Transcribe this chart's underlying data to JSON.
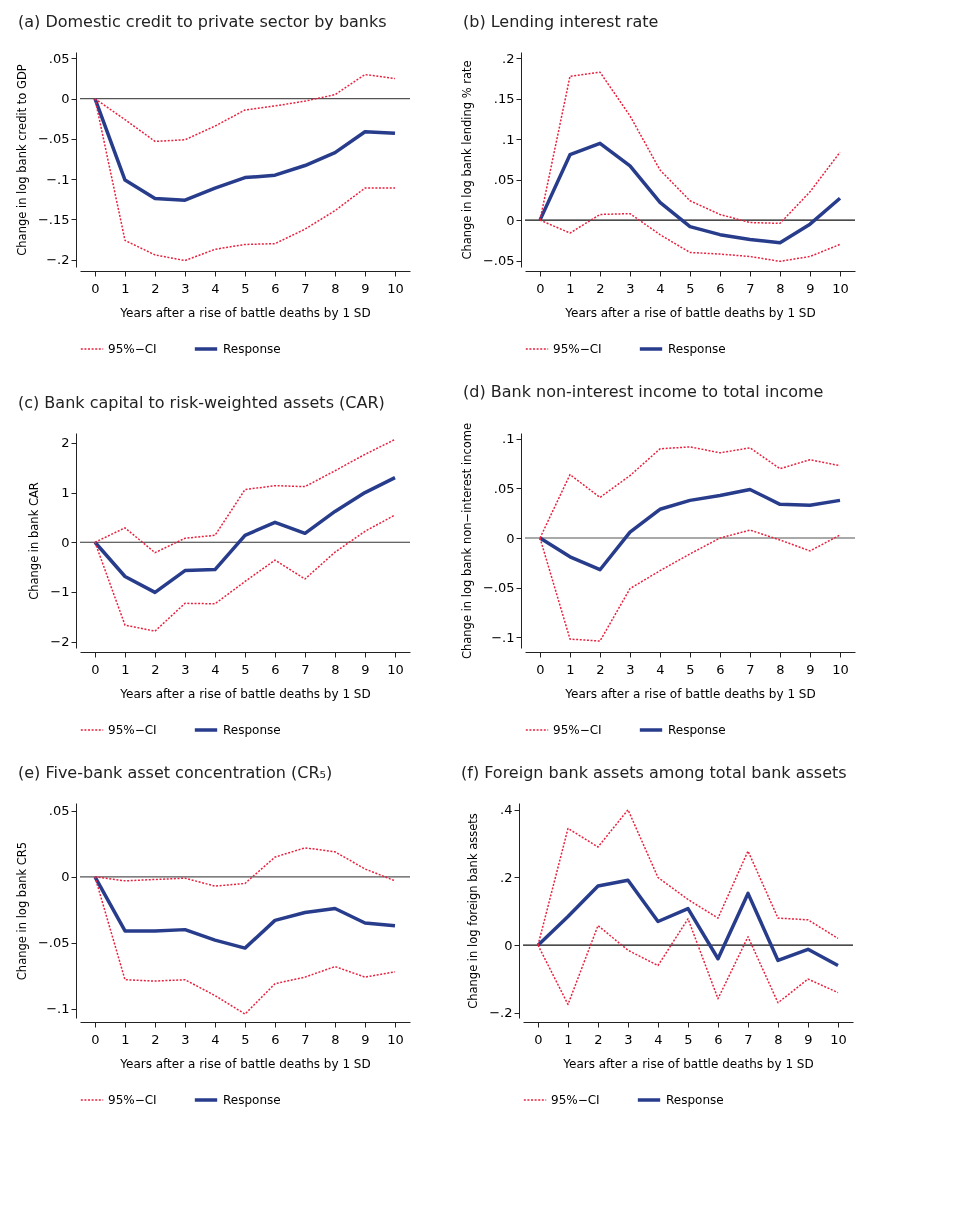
{
  "chart_data": [
    {
      "type": "line",
      "title": "(a) Domestic credit to private sector by banks",
      "xlabel": "Years after a rise of battle deaths by 1 SD",
      "ylabel": "Change in log bank credit to GDP",
      "x": [
        0,
        1,
        2,
        3,
        4,
        5,
        6,
        7,
        8,
        9,
        10
      ],
      "xlim": [
        -0.5,
        10.5
      ],
      "xticks": [
        0,
        1,
        2,
        3,
        4,
        5,
        6,
        7,
        8,
        9,
        10
      ],
      "ylim": [
        -0.209,
        0.058
      ],
      "yticks": [
        {
          "value": -0.2,
          "label": "−.2"
        },
        {
          "value": -0.15,
          "label": "−.15"
        },
        {
          "value": -0.1,
          "label": "−.1"
        },
        {
          "value": -0.05,
          "label": "−.05"
        },
        0,
        {
          "value": 0.05,
          "label": ".05"
        }
      ],
      "legend": "bottom",
      "ref_lines": [
        {
          "axis": "y",
          "value": 0,
          "color": "#555555"
        }
      ],
      "series": [
        {
          "name": "95%−CI",
          "color": "#e8213f",
          "line_style": "dotted",
          "values": [
            0,
            -0.026,
            -0.053,
            -0.051,
            -0.034,
            -0.014,
            -0.009,
            -0.003,
            0.005,
            0.03,
            0.025
          ]
        },
        {
          "color": "#e8213f",
          "line_style": "dotted",
          "values": [
            0,
            -0.176,
            -0.194,
            -0.201,
            -0.187,
            -0.181,
            -0.18,
            -0.162,
            -0.139,
            -0.111,
            -0.111
          ]
        },
        {
          "name": "Response",
          "color": "#283c8c",
          "line_style": "solid",
          "values": [
            0,
            -0.101,
            -0.124,
            -0.126,
            -0.111,
            -0.098,
            -0.095,
            -0.083,
            -0.067,
            -0.041,
            -0.043
          ]
        }
      ]
    },
    {
      "type": "line",
      "title": "(b) Lending interest rate",
      "xlabel": "Years after a rise of battle deaths by 1 SD",
      "ylabel": "Change in log bank lending % rate",
      "x": [
        0,
        1,
        2,
        3,
        4,
        5,
        6,
        7,
        8,
        9,
        10
      ],
      "xlim": [
        -0.5,
        10.5
      ],
      "xticks": [
        0,
        1,
        2,
        3,
        4,
        5,
        6,
        7,
        8,
        9,
        10
      ],
      "ylim": [
        -0.058,
        0.208
      ],
      "yticks": [
        {
          "value": -0.05,
          "label": "−.05"
        },
        0,
        {
          "value": 0.05,
          "label": ".05"
        },
        {
          "value": 0.1,
          "label": ".1"
        },
        {
          "value": 0.15,
          "label": ".15"
        },
        {
          "value": 0.2,
          "label": ".2"
        }
      ],
      "legend": "bottom",
      "ref_lines": [
        {
          "axis": "y",
          "value": 0,
          "color": "#111111"
        }
      ],
      "series": [
        {
          "name": "95%−CI",
          "color": "#e8213f",
          "line_style": "dotted",
          "values": [
            0,
            0.178,
            0.183,
            0.129,
            0.062,
            0.024,
            0.007,
            -0.003,
            -0.004,
            0.035,
            0.084
          ]
        },
        {
          "color": "#e8213f",
          "line_style": "dotted",
          "values": [
            0,
            -0.016,
            0.007,
            0.008,
            -0.018,
            -0.04,
            -0.042,
            -0.045,
            -0.051,
            -0.045,
            -0.03
          ]
        },
        {
          "name": "Response",
          "color": "#283c8c",
          "line_style": "solid",
          "values": [
            0,
            0.081,
            0.095,
            0.067,
            0.022,
            -0.008,
            -0.018,
            -0.024,
            -0.028,
            -0.005,
            0.027
          ]
        }
      ]
    },
    {
      "type": "line",
      "title": "(c) Bank capital to risk-weighted assets (CAR)",
      "xlabel": "Years after a rise of battle deaths by 1 SD",
      "ylabel": "Change in bank CAR",
      "x": [
        0,
        1,
        2,
        3,
        4,
        5,
        6,
        7,
        8,
        9,
        10
      ],
      "xlim": [
        -0.5,
        10.5
      ],
      "xticks": [
        0,
        1,
        2,
        3,
        4,
        5,
        6,
        7,
        8,
        9,
        10
      ],
      "ylim": [
        -2.13,
        2.2
      ],
      "yticks": [
        {
          "value": -2,
          "label": "−2"
        },
        {
          "value": -1,
          "label": "−1"
        },
        0,
        1,
        2
      ],
      "legend": "bottom",
      "ref_lines": [
        {
          "axis": "y",
          "value": 0,
          "color": "#333333"
        }
      ],
      "series": [
        {
          "name": "95%−CI",
          "color": "#e8213f",
          "line_style": "dotted",
          "values": [
            0,
            0.29,
            -0.21,
            0.08,
            0.14,
            1.06,
            1.14,
            1.12,
            1.44,
            1.77,
            2.07
          ]
        },
        {
          "color": "#e8213f",
          "line_style": "dotted",
          "values": [
            0,
            -1.67,
            -1.79,
            -1.23,
            -1.24,
            -0.79,
            -0.36,
            -0.74,
            -0.2,
            0.22,
            0.55
          ]
        },
        {
          "name": "Response",
          "color": "#283c8c",
          "line_style": "solid",
          "values": [
            0,
            -0.69,
            -1.01,
            -0.57,
            -0.55,
            0.14,
            0.4,
            0.18,
            0.62,
            1.0,
            1.3
          ]
        }
      ]
    },
    {
      "type": "line",
      "title": "(d) Bank non-interest income to total income",
      "xlabel": "Years after a rise of battle deaths by 1 SD",
      "ylabel": "Change in log bank non−interest income",
      "x": [
        0,
        1,
        2,
        3,
        4,
        5,
        6,
        7,
        8,
        9,
        10
      ],
      "xlim": [
        -0.5,
        10.5
      ],
      "xticks": [
        0,
        1,
        2,
        3,
        4,
        5,
        6,
        7,
        8,
        9,
        10
      ],
      "ylim": [
        -0.111,
        0.106
      ],
      "yticks": [
        {
          "value": -0.1,
          "label": "−.1"
        },
        {
          "value": -0.05,
          "label": "−.05"
        },
        0,
        {
          "value": 0.05,
          "label": ".05"
        },
        {
          "value": 0.1,
          "label": ".1"
        }
      ],
      "legend": "bottom",
      "ref_lines": [
        {
          "axis": "y",
          "value": 0,
          "color": "#555555"
        }
      ],
      "series": [
        {
          "name": "95%−CI",
          "color": "#e8213f",
          "line_style": "dotted",
          "values": [
            0,
            0.064,
            0.041,
            0.063,
            0.09,
            0.092,
            0.086,
            0.091,
            0.07,
            0.079,
            0.073
          ]
        },
        {
          "color": "#e8213f",
          "line_style": "dotted",
          "values": [
            0,
            -0.102,
            -0.104,
            -0.051,
            -0.033,
            -0.016,
            0,
            0.008,
            -0.002,
            -0.013,
            0.003
          ]
        },
        {
          "name": "Response",
          "color": "#283c8c",
          "line_style": "solid",
          "values": [
            0,
            -0.019,
            -0.032,
            0.006,
            0.029,
            0.038,
            0.043,
            0.049,
            0.034,
            0.033,
            0.038
          ]
        }
      ]
    },
    {
      "type": "line",
      "title": "(e) Five-bank asset concentration (CR₅)",
      "xlabel": "Years after a rise of battle deaths by 1 SD",
      "ylabel": "Change in log bank CR5",
      "x": [
        0,
        1,
        2,
        3,
        4,
        5,
        6,
        7,
        8,
        9,
        10
      ],
      "xlim": [
        -0.5,
        10.5
      ],
      "xticks": [
        0,
        1,
        2,
        3,
        4,
        5,
        6,
        7,
        8,
        9,
        10
      ],
      "ylim": [
        -0.107,
        0.056
      ],
      "yticks": [
        {
          "value": -0.1,
          "label": "−.1"
        },
        {
          "value": -0.05,
          "label": "−.05"
        },
        0,
        {
          "value": 0.05,
          "label": ".05"
        }
      ],
      "legend": "bottom",
      "ref_lines": [
        {
          "axis": "y",
          "value": 0,
          "color": "#555555"
        }
      ],
      "series": [
        {
          "name": "95%−CI",
          "color": "#e8213f",
          "line_style": "dotted",
          "values": [
            0,
            -0.003,
            -0.002,
            -0.001,
            -0.007,
            -0.005,
            0.015,
            0.022,
            0.019,
            0.006,
            -0.003
          ]
        },
        {
          "color": "#e8213f",
          "line_style": "dotted",
          "values": [
            0,
            -0.078,
            -0.079,
            -0.078,
            -0.09,
            -0.104,
            -0.081,
            -0.076,
            -0.068,
            -0.076,
            -0.072
          ]
        },
        {
          "name": "Response",
          "color": "#283c8c",
          "line_style": "solid",
          "values": [
            0,
            -0.041,
            -0.041,
            -0.04,
            -0.048,
            -0.054,
            -0.033,
            -0.027,
            -0.024,
            -0.035,
            -0.037
          ]
        }
      ]
    },
    {
      "type": "line",
      "title": "(f) Foreign bank assets among total bank assets",
      "xlabel": "Years after a rise of battle deaths by 1 SD",
      "ylabel": "Change in log foreign bank assets",
      "x": [
        0,
        1,
        2,
        3,
        4,
        5,
        6,
        7,
        8,
        9,
        10
      ],
      "xlim": [
        -0.5,
        10.5
      ],
      "xticks": [
        0,
        1,
        2,
        3,
        4,
        5,
        6,
        7,
        8,
        9,
        10
      ],
      "ylim": [
        -0.215,
        0.42
      ],
      "yticks": [
        {
          "value": -0.2,
          "label": "−.2"
        },
        0,
        {
          "value": 0.2,
          "label": ".2"
        },
        {
          "value": 0.4,
          "label": ".4"
        }
      ],
      "legend": "bottom",
      "ref_lines": [
        {
          "axis": "y",
          "value": 0,
          "color": "#111111"
        }
      ],
      "series": [
        {
          "name": "95%−CI",
          "color": "#e8213f",
          "line_style": "dotted",
          "values": [
            0,
            0.345,
            0.29,
            0.4,
            0.2,
            0.135,
            0.08,
            0.278,
            0.08,
            0.075,
            0.02
          ]
        },
        {
          "color": "#e8213f",
          "line_style": "dotted",
          "values": [
            0,
            -0.175,
            0.058,
            -0.015,
            -0.06,
            0.078,
            -0.158,
            0.025,
            -0.17,
            -0.1,
            -0.14
          ]
        },
        {
          "name": "Response",
          "color": "#283c8c",
          "line_style": "solid",
          "values": [
            0,
            0.085,
            0.175,
            0.192,
            0.07,
            0.108,
            -0.04,
            0.153,
            -0.045,
            -0.012,
            -0.06
          ]
        }
      ]
    }
  ]
}
